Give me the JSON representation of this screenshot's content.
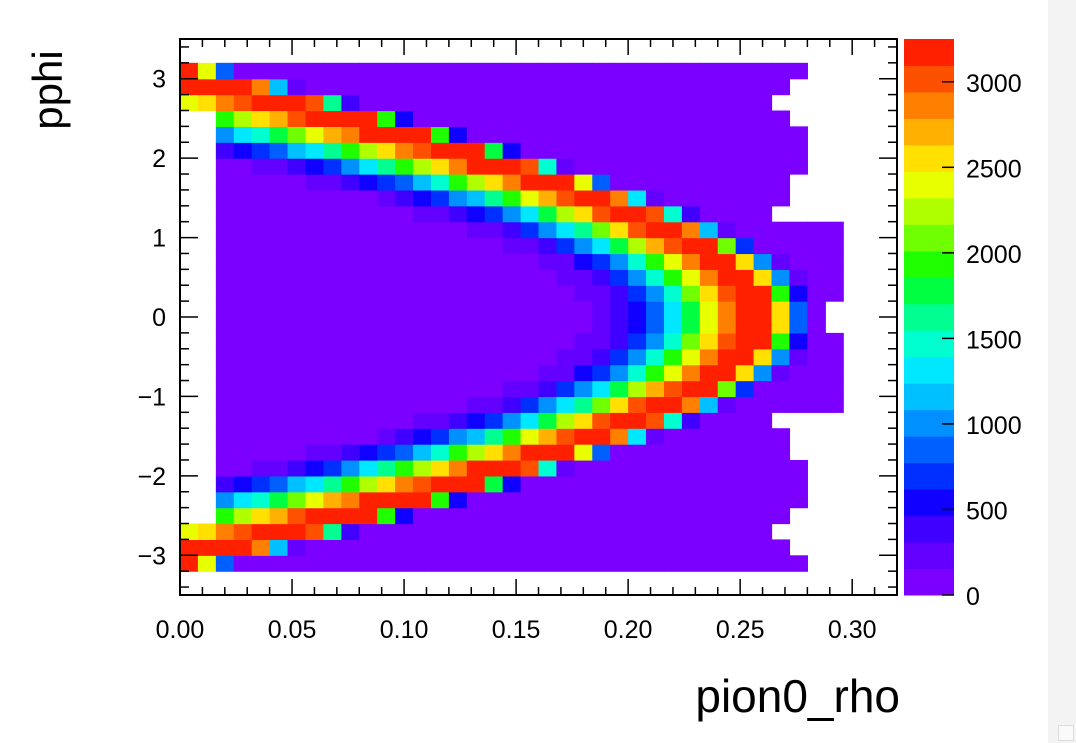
{
  "chart_data": {
    "type": "heatmap",
    "xlabel": "pion0_rho",
    "ylabel": "pphi",
    "xlim": [
      0.0,
      0.32
    ],
    "ylim": [
      -3.5,
      3.5
    ],
    "x_ticks": [
      "0.00",
      "0.05",
      "0.10",
      "0.15",
      "0.20",
      "0.25",
      "0.30"
    ],
    "y_ticks": [
      "−3",
      "−2",
      "−1",
      "0",
      "1",
      "2",
      "3"
    ],
    "colorbar": {
      "min": 0,
      "max": 3250,
      "ticks": [
        "0",
        "500",
        "1000",
        "1500",
        "2000",
        "2500",
        "3000"
      ]
    },
    "bins": {
      "x_start": 0.0,
      "x_width": 0.008,
      "x_count": 40,
      "y_start": -3.2,
      "y_width": 0.2,
      "y_count": 32
    },
    "description_model": {
      "ridge": "counts peak along rho = 0.26*|cos(pphi/2)| reaching ~3200 near the ridge",
      "filled_region": "nonzero counts for rho up to ~0.26-0.30"
    },
    "palette": [
      "#7c00ff",
      "#6400ff",
      "#4000ff",
      "#1000ff",
      "#0030ff",
      "#0060ff",
      "#0090ff",
      "#00c0ff",
      "#00e8ff",
      "#00ffd0",
      "#00ff90",
      "#00ff40",
      "#20ff00",
      "#70ff00",
      "#b0ff00",
      "#e8ff00",
      "#ffe000",
      "#ffb000",
      "#ff8000",
      "#ff5000",
      "#ff2000"
    ]
  }
}
